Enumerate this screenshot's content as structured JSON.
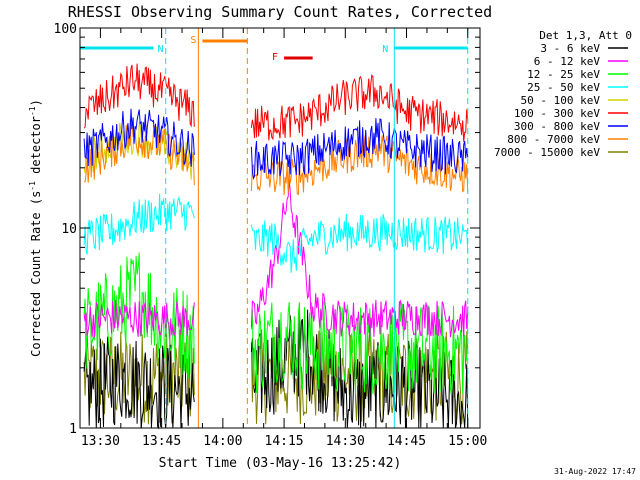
{
  "chart_data": {
    "type": "line",
    "title": "RHESSI Observing Summary Count Rates, Corrected",
    "xlabel": "Start Time (03-May-16 13:25:42)",
    "ylabel": "Corrected Count Rate (s⁻¹ detector⁻¹)",
    "ylabel_parts": [
      "Corrected Count Rate (s",
      "-1",
      " detector",
      "-1",
      ")"
    ],
    "yscale": "log",
    "ylim": [
      1,
      100
    ],
    "xlim": [
      "13:25",
      "15:03"
    ],
    "x_ticks": [
      "13:30",
      "13:45",
      "14:00",
      "14:15",
      "14:30",
      "14:45",
      "15:00"
    ],
    "y_ticks": [
      "1",
      "10",
      "100"
    ],
    "legend_title": "Det 1,3, Att 0",
    "legend_position": "top-right",
    "timestamp": "31-Aug-2022 17:47",
    "data_gap": [
      "13:53",
      "14:07"
    ],
    "flags": [
      {
        "label": "N",
        "color": "#00e5ee",
        "start": "13:25",
        "end": "13:43"
      },
      {
        "label": "N",
        "color": "#00e5ee",
        "start": "14:42",
        "end": "15:00"
      },
      {
        "label": "S",
        "color": "#ff8000",
        "start": "13:55",
        "end": "14:06"
      },
      {
        "label": "F",
        "color": "#e00000",
        "start": "14:15",
        "end": "14:22"
      }
    ],
    "markers_dashed": [
      {
        "time": "13:46",
        "color": "#00e5ee"
      },
      {
        "time": "14:06",
        "color": "#ff8000"
      },
      {
        "time": "15:00",
        "color": "#00e5ee"
      }
    ],
    "markers_solid": [
      {
        "time": "13:54",
        "color": "#ff8000"
      },
      {
        "time": "14:42",
        "color": "#00e5ee"
      }
    ],
    "series": [
      {
        "name": "3 - 6 keV",
        "color": "#000000",
        "x": [
          "13:26",
          "13:35",
          "13:45",
          "13:53",
          "14:08",
          "14:15",
          "14:20",
          "14:30",
          "14:45",
          "15:00"
        ],
        "y": [
          1.5,
          1.8,
          1.6,
          1.5,
          1.7,
          2.2,
          2.5,
          1.5,
          1.6,
          1.3
        ]
      },
      {
        "name": "6 - 12 keV",
        "color": "#ff00ff",
        "x": [
          "13:26",
          "13:35",
          "13:45",
          "13:53",
          "14:08",
          "14:13",
          "14:16",
          "14:19",
          "14:22",
          "14:30",
          "14:45",
          "15:00"
        ],
        "y": [
          3.5,
          3.6,
          3.5,
          3.5,
          3.5,
          7,
          15,
          8,
          4,
          3.5,
          3.6,
          3.5
        ]
      },
      {
        "name": "12 - 25 keV",
        "color": "#00ff00",
        "x": [
          "13:26",
          "13:35",
          "13:40",
          "13:45",
          "13:53",
          "14:08",
          "14:15",
          "14:20",
          "14:30",
          "14:45",
          "15:00"
        ],
        "y": [
          3,
          4,
          5,
          3.2,
          3,
          2.5,
          3,
          2.6,
          2.5,
          2.5,
          2.4
        ]
      },
      {
        "name": "25 - 50 keV",
        "color": "#00ffff",
        "x": [
          "13:26",
          "13:32",
          "13:38",
          "13:45",
          "13:53",
          "14:08",
          "14:12",
          "14:17",
          "14:22",
          "14:30",
          "14:45",
          "15:00"
        ],
        "y": [
          9,
          9.5,
          11,
          12,
          12,
          8.5,
          9,
          7,
          9,
          9.5,
          9.5,
          9
        ]
      },
      {
        "name": "50 - 100 keV",
        "color": "#d4d400",
        "x": [
          "13:26",
          "13:32",
          "13:38",
          "13:45",
          "13:53"
        ],
        "y": [
          22,
          26,
          29,
          26,
          21
        ]
      },
      {
        "name": "100 - 300 keV",
        "color": "#ff0000",
        "x": [
          "13:26",
          "13:32",
          "13:38",
          "13:45",
          "13:53",
          "14:08",
          "14:18",
          "14:30",
          "14:38",
          "14:45",
          "15:00"
        ],
        "y": [
          38,
          45,
          55,
          48,
          38,
          33,
          34,
          45,
          48,
          38,
          33
        ]
      },
      {
        "name": "300 - 800 keV",
        "color": "#0000ff",
        "x": [
          "13:26",
          "13:32",
          "13:38",
          "13:45",
          "13:53",
          "14:08",
          "14:18",
          "14:30",
          "14:38",
          "14:45",
          "15:00"
        ],
        "y": [
          24,
          28,
          33,
          30,
          24,
          22,
          22,
          27,
          29,
          25,
          22
        ]
      },
      {
        "name": "800 - 7000 keV",
        "color": "#ff8000",
        "x": [
          "13:26",
          "13:32",
          "13:38",
          "13:45",
          "13:53",
          "14:08",
          "14:18",
          "14:30",
          "14:38",
          "14:45",
          "15:00"
        ],
        "y": [
          20,
          24,
          29,
          26,
          20,
          18,
          18,
          23,
          25,
          21,
          18
        ]
      },
      {
        "name": "7000 - 15000 keV",
        "color": "#808000",
        "x": [
          "13:26",
          "13:35",
          "13:45",
          "13:53",
          "14:08",
          "14:20",
          "14:30",
          "14:45",
          "15:00"
        ],
        "y": [
          1.8,
          1.8,
          1.8,
          1.8,
          1.8,
          1.8,
          1.8,
          1.8,
          1.8
        ]
      }
    ]
  }
}
